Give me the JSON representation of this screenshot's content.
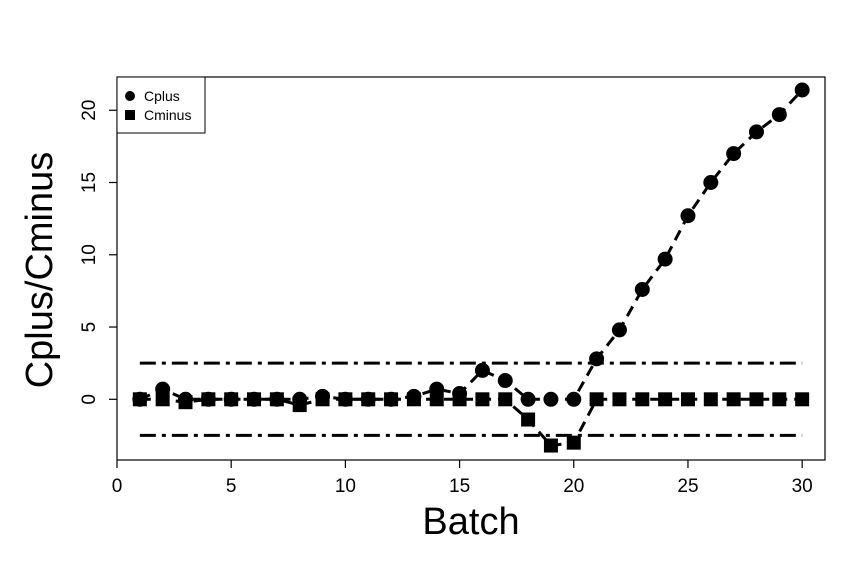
{
  "chart_data": {
    "type": "line",
    "xlabel": "Batch",
    "ylabel": "Cplus/Cminus",
    "xlim": [
      0,
      31
    ],
    "ylim": [
      -4.2,
      22.3
    ],
    "xticks": [
      0,
      5,
      10,
      15,
      20,
      25,
      30
    ],
    "yticks": [
      0,
      5,
      10,
      15,
      20
    ],
    "legend_position": "top-left",
    "x": [
      1,
      2,
      3,
      4,
      5,
      6,
      7,
      8,
      9,
      10,
      11,
      12,
      13,
      14,
      15,
      16,
      17,
      18,
      19,
      20,
      21,
      22,
      23,
      24,
      25,
      26,
      27,
      28,
      29,
      30
    ],
    "series": [
      {
        "name": "Cplus",
        "marker": "circle",
        "values": [
          0.0,
          0.7,
          0.0,
          0.0,
          0.0,
          0.0,
          0.0,
          0.0,
          0.2,
          0.0,
          0.0,
          0.0,
          0.2,
          0.7,
          0.4,
          2.0,
          1.3,
          0.0,
          0.0,
          0.0,
          2.8,
          4.8,
          7.6,
          9.7,
          12.7,
          15.0,
          17.0,
          18.5,
          19.7,
          21.4
        ]
      },
      {
        "name": "Cminus",
        "marker": "square",
        "values": [
          0.0,
          0.0,
          -0.2,
          0.0,
          0.0,
          0.0,
          0.0,
          -0.4,
          0.0,
          0.0,
          0.0,
          0.0,
          0.0,
          0.0,
          0.0,
          0.0,
          0.0,
          -1.4,
          -3.2,
          -3.0,
          0.0,
          0.0,
          0.0,
          0.0,
          0.0,
          0.0,
          0.0,
          0.0,
          0.0,
          0.0
        ]
      }
    ],
    "reference_lines": [
      {
        "y": 2.5,
        "xrange": [
          1,
          30
        ],
        "style": "dash-dot"
      },
      {
        "y": -2.5,
        "xrange": [
          1,
          30
        ],
        "style": "dash-dot"
      }
    ]
  }
}
